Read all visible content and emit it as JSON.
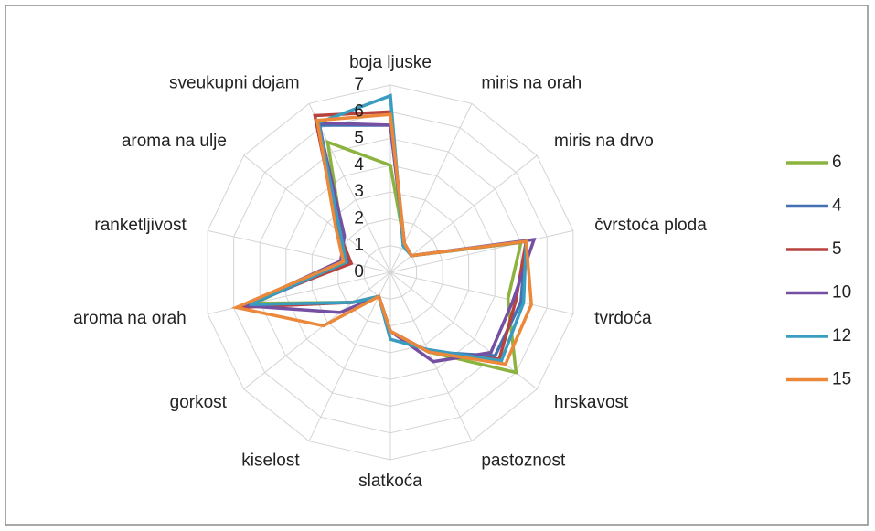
{
  "chart_data": {
    "type": "radar",
    "categories": [
      "boja ljuske",
      "miris na orah",
      "miris na drvo",
      "čvrstoća ploda",
      "tvrdoća",
      "hrskavost",
      "pastoznost",
      "slatkoća",
      "kiselost",
      "gorkost",
      "aroma na orah",
      "ranketljivost",
      "aroma na ulje",
      "sveukupni dojam"
    ],
    "series": [
      {
        "name": "6",
        "color": "#8cb33f",
        "values": [
          4.0,
          1.2,
          1.0,
          5.0,
          4.5,
          6.0,
          3.3,
          2.2,
          1.0,
          1.8,
          5.2,
          1.8,
          2.3,
          5.4
        ]
      },
      {
        "name": "4",
        "color": "#4470b4",
        "values": [
          5.5,
          1.2,
          1.0,
          5.2,
          5.0,
          5.0,
          3.3,
          2.2,
          1.0,
          1.8,
          5.4,
          1.6,
          2.4,
          6.1
        ]
      },
      {
        "name": "5",
        "color": "#b8423d",
        "values": [
          6.0,
          1.2,
          1.0,
          5.2,
          4.8,
          5.2,
          3.3,
          2.2,
          1.0,
          1.8,
          5.9,
          1.5,
          2.5,
          6.5
        ]
      },
      {
        "name": "10",
        "color": "#7550a2",
        "values": [
          5.5,
          1.2,
          1.0,
          5.5,
          4.7,
          4.8,
          3.7,
          2.2,
          1.0,
          2.4,
          5.6,
          1.9,
          2.2,
          6.2
        ]
      },
      {
        "name": "12",
        "color": "#3a9dc0",
        "values": [
          6.6,
          1.1,
          1.0,
          5.2,
          5.1,
          5.3,
          3.2,
          2.5,
          1.0,
          1.8,
          5.4,
          1.7,
          2.4,
          6.2
        ]
      },
      {
        "name": "15",
        "color": "#ec883a",
        "values": [
          5.9,
          1.2,
          1.0,
          5.2,
          5.4,
          5.5,
          3.3,
          2.2,
          1.0,
          3.2,
          5.9,
          1.8,
          2.6,
          6.3
        ]
      }
    ],
    "ylim": [
      0,
      7
    ],
    "yticks": [
      0,
      1,
      2,
      3,
      4,
      5,
      6,
      7
    ],
    "grid": true,
    "legend": "right"
  }
}
